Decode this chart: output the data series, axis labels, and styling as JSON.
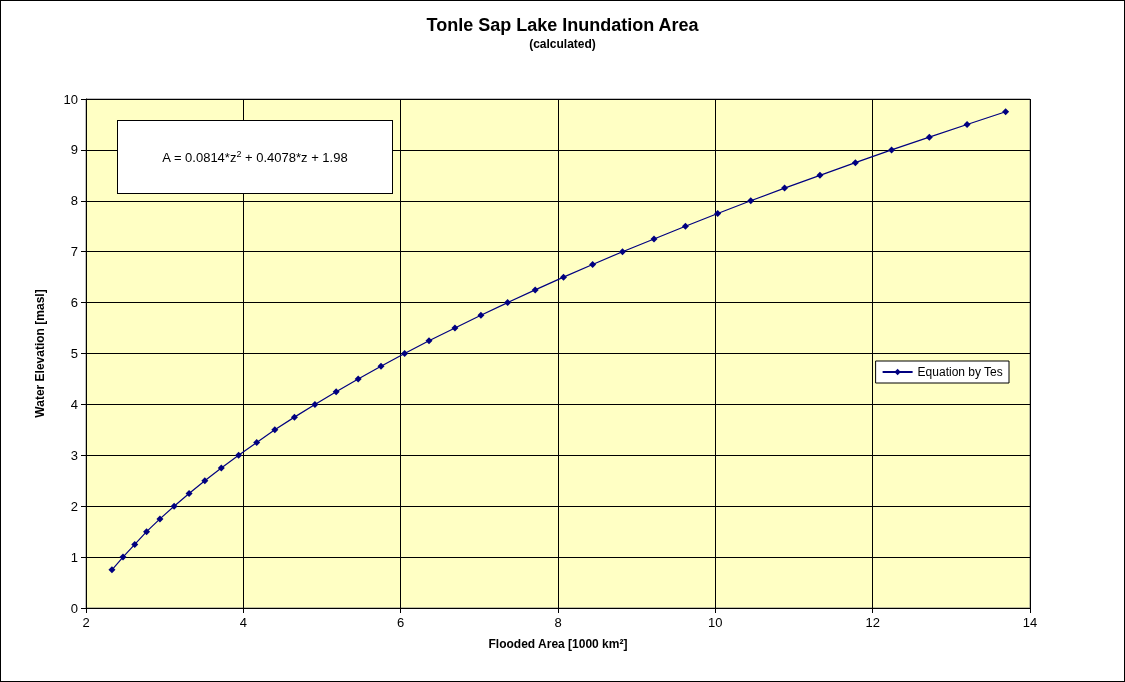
{
  "chart_data": {
    "type": "line",
    "title": "Tonle Sap Lake Inundation Area",
    "subtitle": "(calculated)",
    "xlabel": "Flooded Area [1000 km²]",
    "ylabel": "Water Elevation [masl]",
    "annotations": [
      "A = 0.0814*z$^{2}$ + 0.4078*z + 1.98"
    ],
    "series": [
      {
        "name": "Equation by Tes",
        "color": "#000080",
        "x": [
          2.33,
          2.47,
          2.62,
          2.77,
          2.94,
          3.12,
          3.31,
          3.51,
          3.72,
          3.94,
          4.17,
          4.4,
          4.65,
          4.91,
          5.18,
          5.46,
          5.75,
          6.05,
          6.36,
          6.69,
          7.02,
          7.36,
          7.71,
          8.07,
          8.44,
          8.82,
          9.22,
          9.62,
          10.03,
          10.45,
          10.88,
          11.33,
          11.78,
          12.24,
          12.72,
          13.2,
          13.69
        ],
        "values": [
          0.75,
          1,
          1.25,
          1.5,
          1.75,
          2,
          2.25,
          2.5,
          2.75,
          3,
          3.25,
          3.5,
          3.75,
          4,
          4.25,
          4.5,
          4.75,
          5,
          5.25,
          5.5,
          5.75,
          6,
          6.25,
          6.5,
          6.75,
          7,
          7.25,
          7.5,
          7.75,
          8,
          8.25,
          8.5,
          8.75,
          9,
          9.25,
          9.5,
          9.75
        ]
      }
    ],
    "xlim": [
      2,
      14
    ],
    "xticks": [
      2,
      4,
      6,
      8,
      10,
      12,
      14
    ],
    "ylim": [
      0,
      10
    ],
    "yticks": [
      0,
      1,
      2,
      3,
      4,
      5,
      6,
      7,
      8,
      9,
      10
    ],
    "grid": true,
    "legend": "right",
    "marker": "diamond",
    "line_style": "solid"
  }
}
